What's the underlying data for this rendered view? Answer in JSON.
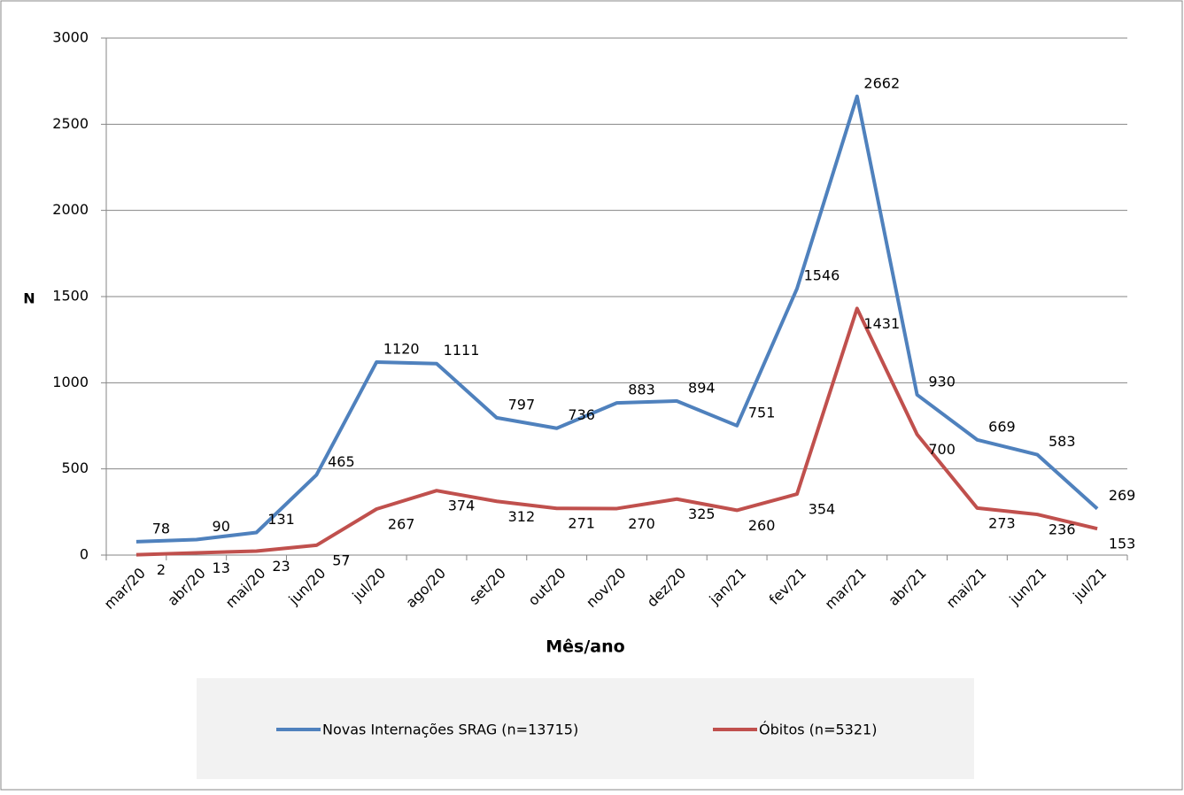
{
  "chart_data": {
    "type": "line",
    "x_label": "Mês/ano",
    "y_label": "N",
    "categories": [
      "mar/20",
      "abr/20",
      "mai/20",
      "jun/20",
      "jul/20",
      "ago/20",
      "set/20",
      "out/20",
      "nov/20",
      "dez/20",
      "jan/21",
      "fev/21",
      "mar/21",
      "abr/21",
      "mai/21",
      "jun/21",
      "jul/21"
    ],
    "series": [
      {
        "name": "Novas Internações SRAG (n=13715)",
        "color": "#4f81bd",
        "values": [
          78,
          90,
          131,
          465,
          1120,
          1111,
          797,
          736,
          883,
          894,
          751,
          1546,
          2662,
          930,
          669,
          583,
          269
        ]
      },
      {
        "name": "Óbitos (n=5321)",
        "color": "#c0504d",
        "values": [
          2,
          13,
          23,
          57,
          267,
          374,
          312,
          271,
          270,
          325,
          260,
          354,
          1431,
          700,
          273,
          236,
          153
        ]
      }
    ],
    "ylim": [
      0,
      3000
    ],
    "yticks": [
      0,
      500,
      1000,
      1500,
      2000,
      2500,
      3000
    ],
    "grid": true,
    "legend": "bottom"
  }
}
